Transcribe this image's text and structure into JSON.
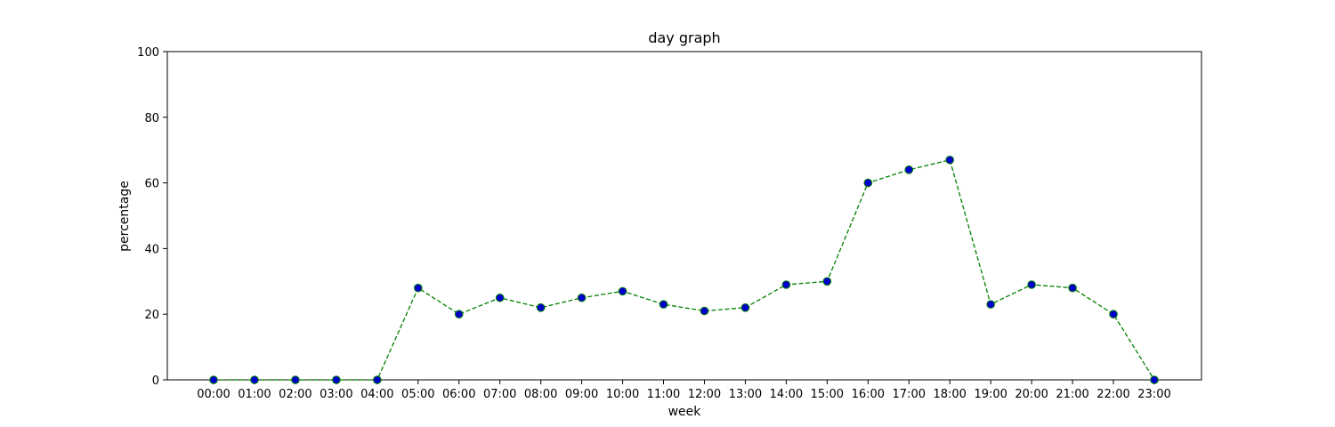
{
  "chart_data": {
    "type": "line",
    "title": "day graph",
    "xlabel": "week",
    "ylabel": "percentage",
    "categories": [
      "00:00",
      "01:00",
      "02:00",
      "03:00",
      "04:00",
      "05:00",
      "06:00",
      "07:00",
      "08:00",
      "09:00",
      "10:00",
      "11:00",
      "12:00",
      "13:00",
      "14:00",
      "15:00",
      "16:00",
      "17:00",
      "18:00",
      "19:00",
      "20:00",
      "21:00",
      "22:00",
      "23:00"
    ],
    "series": [
      {
        "values": [
          0,
          0,
          0,
          0,
          0,
          28,
          20,
          25,
          22,
          25,
          27,
          23,
          21,
          22,
          29,
          30,
          60,
          64,
          67,
          23,
          29,
          28,
          20,
          0
        ],
        "line_color": "#008000",
        "line_style": "dashed",
        "marker_color": "#0000cc",
        "marker_edge_color": "#008000"
      }
    ],
    "ylim": [
      0,
      100
    ],
    "yticks": [
      0,
      20,
      40,
      60,
      80,
      100
    ],
    "grid": false,
    "legend": "none"
  }
}
